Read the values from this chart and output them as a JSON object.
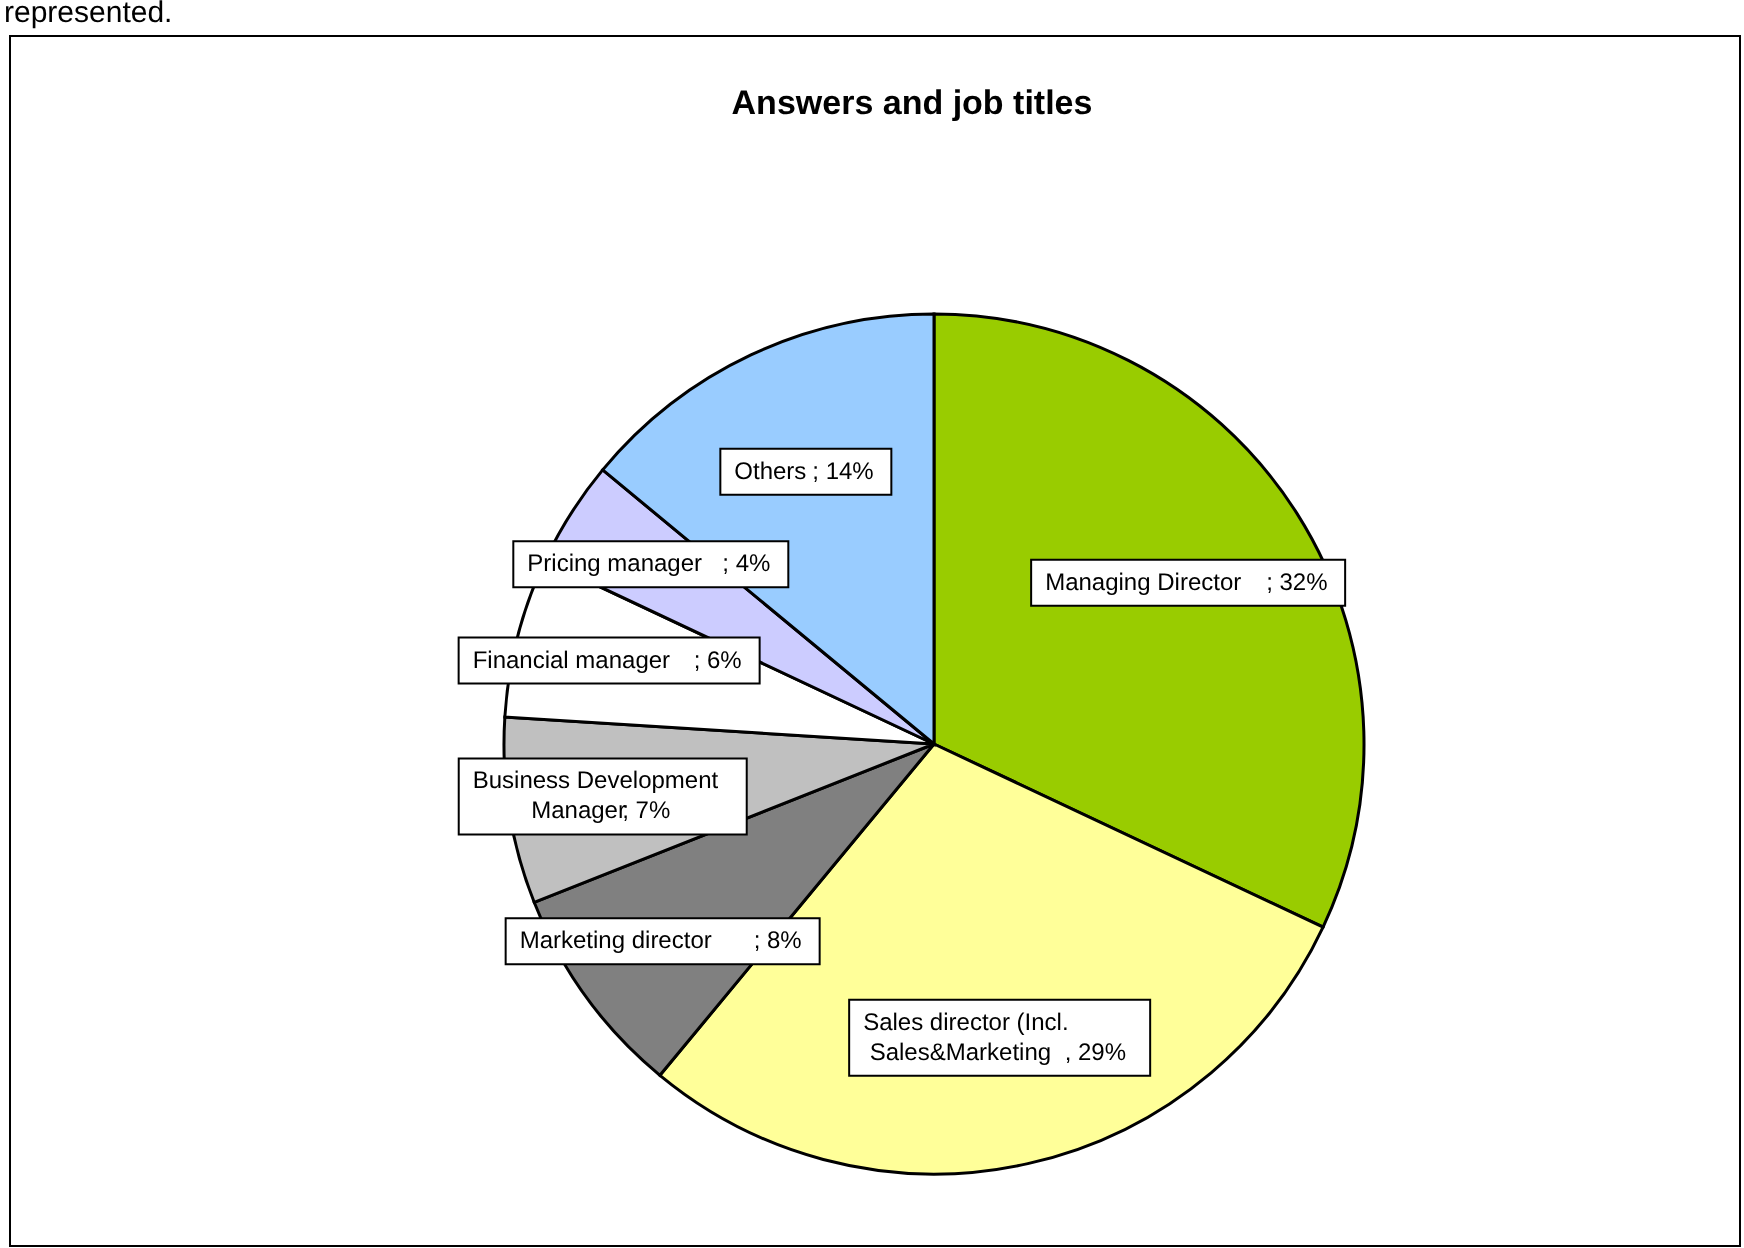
{
  "chart_data": {
    "type": "pie",
    "title": "Answers and job titles",
    "categories": [
      "Managing Director",
      "Sales director (Incl. Sales&Marketing",
      "Marketing director",
      "Business Development Manager",
      "Financial manager",
      "Pricing manager",
      "Others"
    ],
    "values": [
      32,
      29,
      8,
      7,
      6,
      4,
      14
    ],
    "colors": [
      "#99cc00",
      "#ffff99",
      "#808080",
      "#c0c0c0",
      "#ffffff",
      "#ccccff",
      "#99ccff"
    ],
    "value_labels": [
      "; 32%",
      ", 29%",
      "; 8%",
      "; 7%",
      "; 6%",
      "; 4%",
      "; 14%"
    ],
    "annotations": [
      "represented."
    ]
  }
}
